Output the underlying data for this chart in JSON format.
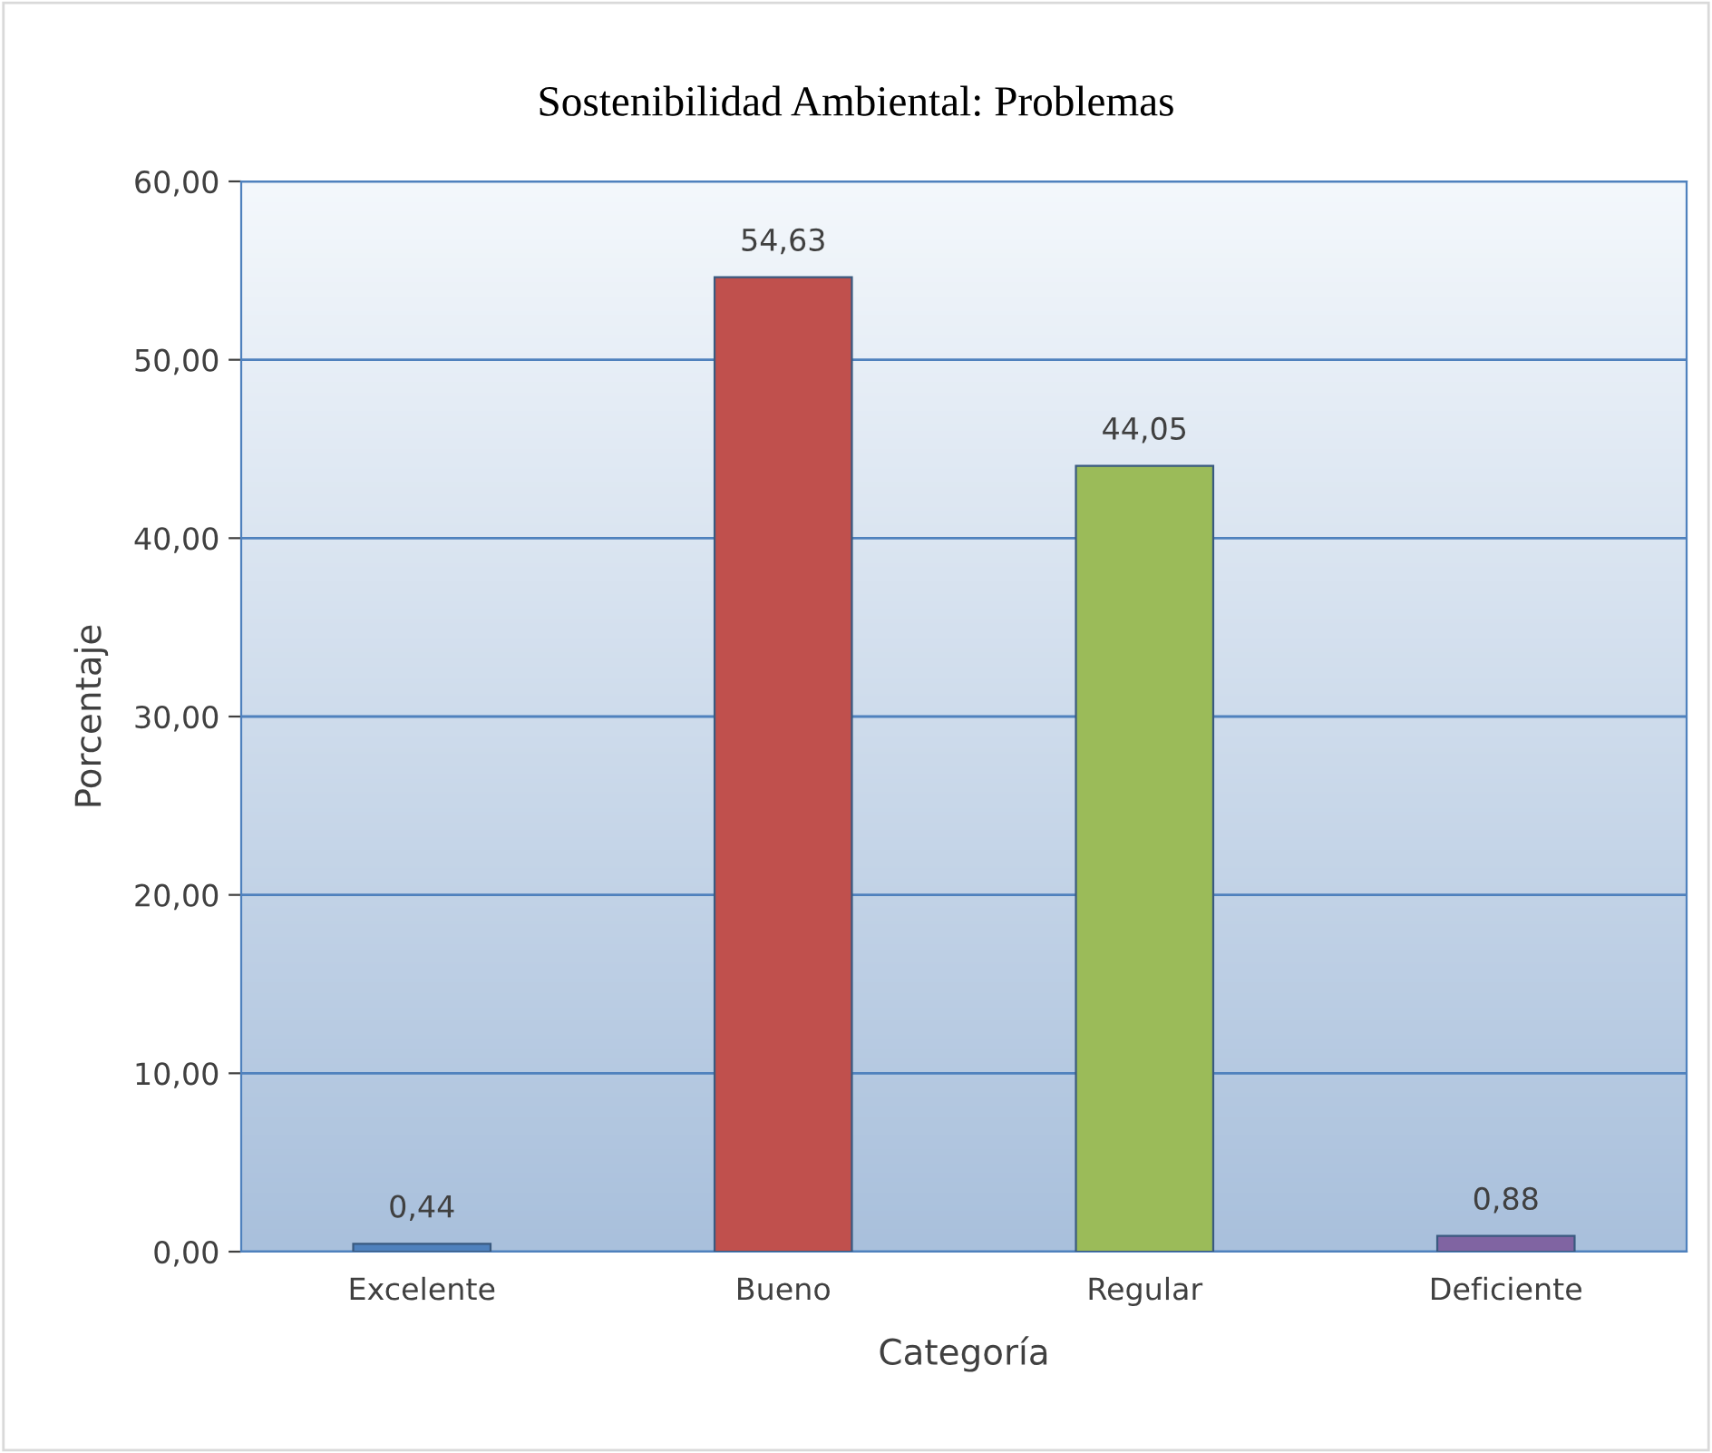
{
  "chart_data": {
    "type": "bar",
    "title": "Sostenibilidad Ambiental: Problemas",
    "xlabel": "Categoría",
    "ylabel": "Porcentaje",
    "categories": [
      "Excelente",
      "Bueno",
      "Regular",
      "Deficiente"
    ],
    "values": [
      0.44,
      54.63,
      44.05,
      0.88
    ],
    "colors": [
      "#4f81bd",
      "#c0504d",
      "#9bbb59",
      "#8064a2"
    ],
    "value_labels": [
      "0,44",
      "54,63",
      "44,05",
      "0,88"
    ],
    "ylim": [
      0,
      60
    ],
    "yticks": [
      {
        "value": 0,
        "label": "0,00"
      },
      {
        "value": 10,
        "label": "10,00"
      },
      {
        "value": 20,
        "label": "20,00"
      },
      {
        "value": 30,
        "label": "30,00"
      },
      {
        "value": 40,
        "label": "40,00"
      },
      {
        "value": 50,
        "label": "50,00"
      },
      {
        "value": 60,
        "label": "60,00"
      }
    ],
    "grid": "y"
  }
}
